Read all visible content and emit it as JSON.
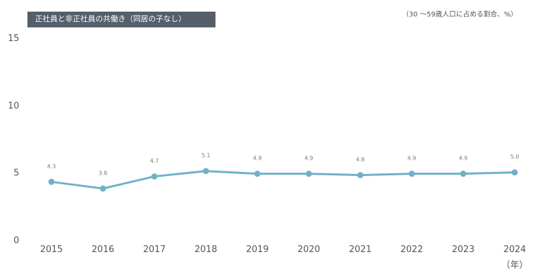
{
  "chart_data": {
    "type": "line",
    "title": "正社員と非正社員の共働き（同居の子なし）",
    "unit_note": "（30 ～59歳人口に占める割合、%）",
    "xlabel": "（年）",
    "categories": [
      "2015",
      "2016",
      "2017",
      "2018",
      "2019",
      "2020",
      "2021",
      "2022",
      "2023",
      "2024"
    ],
    "values": [
      4.3,
      3.8,
      4.7,
      5.1,
      4.9,
      4.9,
      4.8,
      4.9,
      4.9,
      5.0
    ],
    "data_labels": [
      "4.3",
      "3.8",
      "4.7",
      "5.1",
      "4.9",
      "4.9",
      "4.8",
      "4.9",
      "4.9",
      "5.0"
    ],
    "ylim": [
      0,
      15
    ],
    "yticks": [
      "0",
      "5",
      "10",
      "15"
    ],
    "grid": false,
    "color": "#6fb1c8"
  }
}
